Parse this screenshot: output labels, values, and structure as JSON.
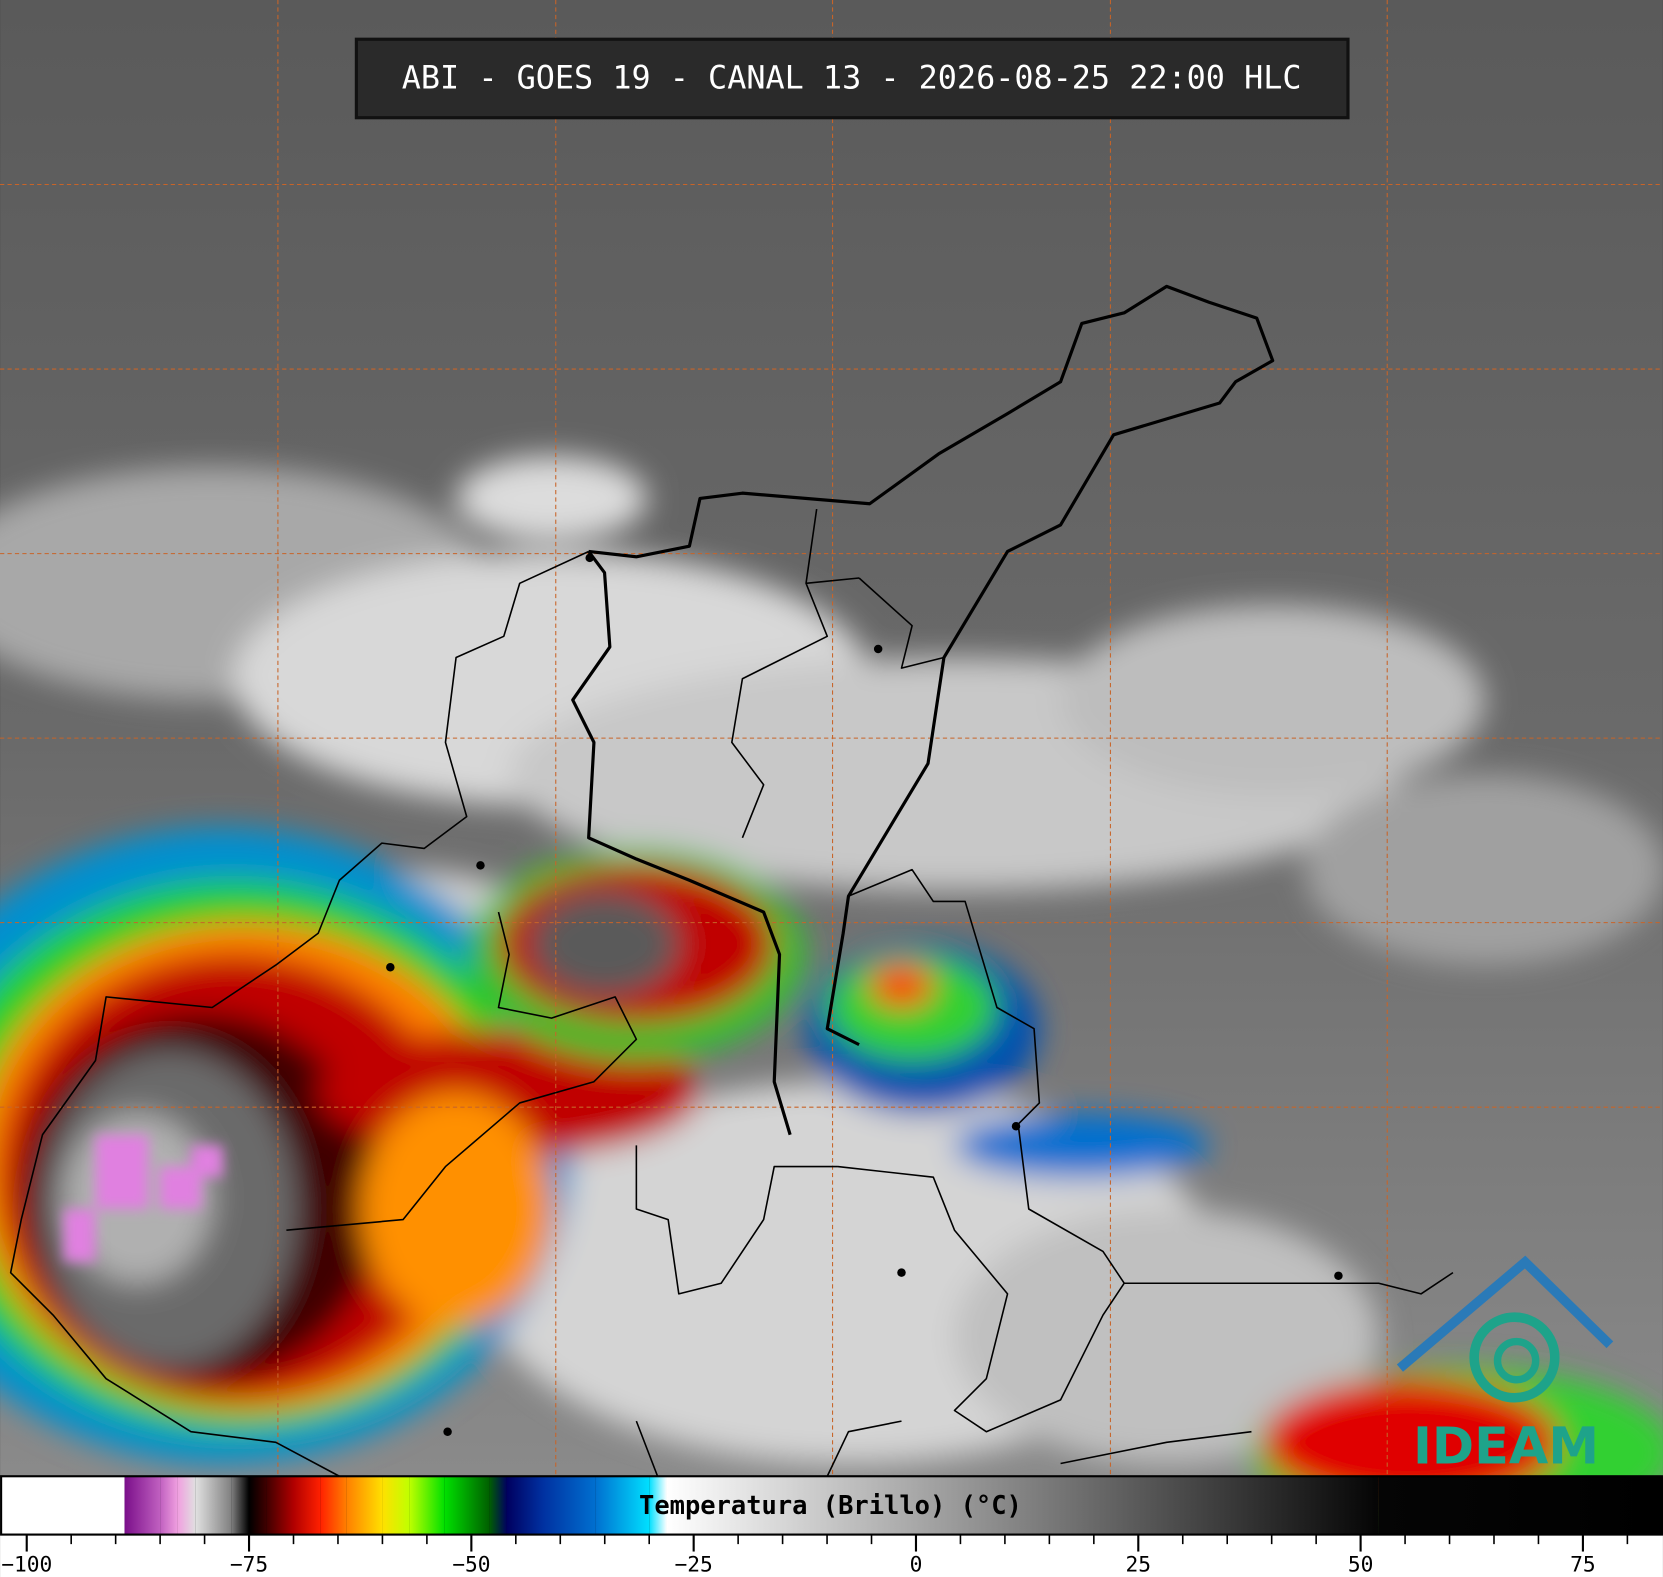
{
  "header": {
    "title": "ABI - GOES 19 - CANAL 13 - 2026-08-25 22:00 HLC"
  },
  "logo": {
    "text": "IDEAM"
  },
  "colorbar": {
    "label": "Temperatura (Brillo) (°C)",
    "lim": [
      -103,
      84
    ],
    "ticks": [
      {
        "value": -100,
        "label": "−100"
      },
      {
        "value": -75,
        "label": "−75"
      },
      {
        "value": -50,
        "label": "−50"
      },
      {
        "value": -25,
        "label": "−25"
      },
      0,
      25,
      50,
      75
    ],
    "minor_ticks": [
      -95,
      -90,
      -85,
      -80,
      -70,
      -65,
      -60,
      -55,
      -45,
      -40,
      -35,
      -30,
      -20,
      -15,
      -10,
      -5,
      5,
      10,
      15,
      20,
      30,
      35,
      40,
      45,
      55,
      60,
      65,
      70,
      80
    ],
    "stops": [
      {
        "value": -103,
        "color": "#ffffff"
      },
      {
        "value": -89,
        "color": "#ffffff"
      },
      {
        "value": -89,
        "color": "#7a0f8a"
      },
      {
        "value": -85,
        "color": "#c060c0"
      },
      {
        "value": -83,
        "color": "#f0a0e0"
      },
      {
        "value": -81,
        "color": "#e0e0e0"
      },
      {
        "value": -77,
        "color": "#808080"
      },
      {
        "value": -75,
        "color": "#000000"
      },
      {
        "value": -73,
        "color": "#400000"
      },
      {
        "value": -70,
        "color": "#b00000"
      },
      {
        "value": -67,
        "color": "#ff2000"
      },
      {
        "value": -64,
        "color": "#ff8000"
      },
      {
        "value": -60,
        "color": "#ffe000"
      },
      {
        "value": -57,
        "color": "#c0ff00"
      },
      {
        "value": -53,
        "color": "#00e000"
      },
      {
        "value": -48,
        "color": "#006000"
      },
      {
        "value": -46,
        "color": "#000060"
      },
      {
        "value": -42,
        "color": "#0030a0"
      },
      {
        "value": -36,
        "color": "#0070d0"
      },
      {
        "value": -30,
        "color": "#00e0ff"
      },
      {
        "value": -28,
        "color": "#ffffff"
      },
      {
        "value": 52,
        "color": "#050505"
      },
      {
        "value": 84,
        "color": "#000000"
      }
    ]
  }
}
